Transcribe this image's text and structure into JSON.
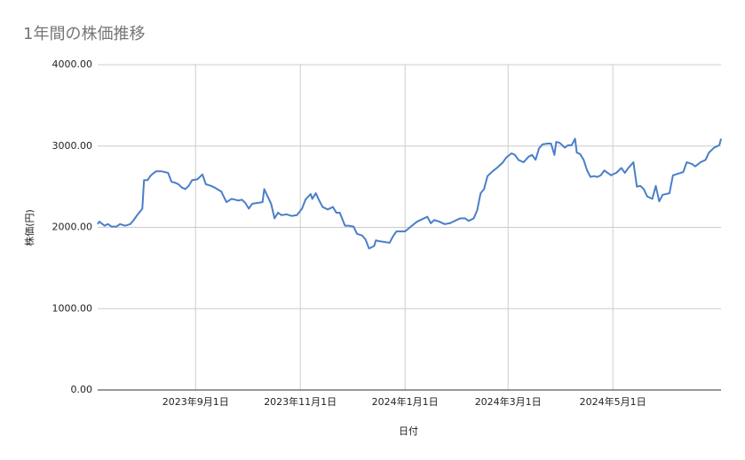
{
  "chart_data": {
    "type": "line",
    "title": "1年間の株価推移",
    "x_label": "日付",
    "y_label": "株価(円)",
    "x": [
      "2023-07-06",
      "2023-07-07",
      "2023-07-10",
      "2023-07-12",
      "2023-07-14",
      "2023-07-17",
      "2023-07-19",
      "2023-07-22",
      "2023-07-25",
      "2023-07-27",
      "2023-07-29",
      "2023-08-01",
      "2023-08-02",
      "2023-08-04",
      "2023-08-06",
      "2023-08-09",
      "2023-08-12",
      "2023-08-16",
      "2023-08-18",
      "2023-08-20",
      "2023-08-22",
      "2023-08-24",
      "2023-08-26",
      "2023-08-28",
      "2023-08-30",
      "2023-09-02",
      "2023-09-05",
      "2023-09-07",
      "2023-09-10",
      "2023-09-12",
      "2023-09-16",
      "2023-09-19",
      "2023-09-22",
      "2023-09-24",
      "2023-09-26",
      "2023-09-28",
      "2023-09-30",
      "2023-10-02",
      "2023-10-04",
      "2023-10-07",
      "2023-10-10",
      "2023-10-11",
      "2023-10-13",
      "2023-10-15",
      "2023-10-17",
      "2023-10-19",
      "2023-10-21",
      "2023-10-24",
      "2023-10-27",
      "2023-10-30",
      "2023-11-02",
      "2023-11-04",
      "2023-11-07",
      "2023-11-08",
      "2023-11-10",
      "2023-11-12",
      "2023-11-14",
      "2023-11-17",
      "2023-11-20",
      "2023-11-22",
      "2023-11-24",
      "2023-11-27",
      "2023-11-29",
      "2023-12-02",
      "2023-12-04",
      "2023-12-07",
      "2023-12-09",
      "2023-12-11",
      "2023-12-14",
      "2023-12-15",
      "2023-12-17",
      "2023-12-20",
      "2023-12-23",
      "2023-12-25",
      "2023-12-27",
      "2023-12-29",
      "2024-01-01",
      "2024-01-05",
      "2024-01-08",
      "2024-01-11",
      "2024-01-14",
      "2024-01-16",
      "2024-01-18",
      "2024-01-21",
      "2024-01-24",
      "2024-01-27",
      "2024-01-30",
      "2024-02-02",
      "2024-02-05",
      "2024-02-07",
      "2024-02-10",
      "2024-02-12",
      "2024-02-14",
      "2024-02-16",
      "2024-02-18",
      "2024-02-21",
      "2024-02-24",
      "2024-02-27",
      "2024-02-29",
      "2024-03-03",
      "2024-03-05",
      "2024-03-07",
      "2024-03-10",
      "2024-03-13",
      "2024-03-15",
      "2024-03-17",
      "2024-03-19",
      "2024-03-21",
      "2024-03-24",
      "2024-03-26",
      "2024-03-28",
      "2024-03-29",
      "2024-03-31",
      "2024-04-03",
      "2024-04-05",
      "2024-04-07",
      "2024-04-09",
      "2024-04-10",
      "2024-04-12",
      "2024-04-14",
      "2024-04-16",
      "2024-04-18",
      "2024-04-20",
      "2024-04-22",
      "2024-04-24",
      "2024-04-26",
      "2024-04-28",
      "2024-04-30",
      "2024-05-03",
      "2024-05-06",
      "2024-05-08",
      "2024-05-10",
      "2024-05-13",
      "2024-05-15",
      "2024-05-17",
      "2024-05-19",
      "2024-05-21",
      "2024-05-24",
      "2024-05-26",
      "2024-05-28",
      "2024-05-30",
      "2024-06-03",
      "2024-06-05",
      "2024-06-08",
      "2024-06-11",
      "2024-06-13",
      "2024-06-16",
      "2024-06-18",
      "2024-06-21",
      "2024-06-24",
      "2024-06-26",
      "2024-06-29",
      "2024-07-02",
      "2024-07-03"
    ],
    "values": [
      2040,
      2070,
      2020,
      2040,
      2010,
      2010,
      2040,
      2020,
      2040,
      2090,
      2150,
      2230,
      2580,
      2580,
      2640,
      2690,
      2690,
      2670,
      2560,
      2550,
      2530,
      2490,
      2470,
      2510,
      2580,
      2590,
      2650,
      2530,
      2510,
      2490,
      2440,
      2310,
      2350,
      2340,
      2330,
      2340,
      2300,
      2230,
      2290,
      2300,
      2310,
      2470,
      2380,
      2290,
      2110,
      2180,
      2150,
      2160,
      2140,
      2150,
      2230,
      2340,
      2410,
      2350,
      2420,
      2330,
      2250,
      2220,
      2250,
      2180,
      2180,
      2020,
      2020,
      2010,
      1920,
      1900,
      1850,
      1740,
      1770,
      1840,
      1830,
      1820,
      1810,
      1890,
      1950,
      1950,
      1950,
      2020,
      2070,
      2100,
      2130,
      2050,
      2090,
      2070,
      2040,
      2050,
      2080,
      2110,
      2110,
      2080,
      2110,
      2210,
      2420,
      2470,
      2630,
      2690,
      2740,
      2800,
      2860,
      2910,
      2890,
      2830,
      2800,
      2870,
      2890,
      2830,
      2970,
      3020,
      3030,
      3030,
      2890,
      3050,
      3040,
      2980,
      3010,
      3010,
      3090,
      2920,
      2900,
      2830,
      2700,
      2620,
      2630,
      2620,
      2640,
      2700,
      2670,
      2640,
      2670,
      2730,
      2670,
      2730,
      2800,
      2500,
      2510,
      2470,
      2380,
      2350,
      2510,
      2320,
      2400,
      2420,
      2640,
      2660,
      2680,
      2800,
      2780,
      2750,
      2800,
      2830,
      2920,
      2980,
      3010,
      3090
    ],
    "color": "#4a7fc9",
    "xlim": [
      "2023-07-06",
      "2024-07-03"
    ],
    "xticks": [
      {
        "value": "2023-09-01",
        "label": "2023年9月1日"
      },
      {
        "value": "2023-11-01",
        "label": "2023年11月1日"
      },
      {
        "value": "2024-01-01",
        "label": "2024年1月1日"
      },
      {
        "value": "2024-03-01",
        "label": "2024年3月1日"
      },
      {
        "value": "2024-05-01",
        "label": "2024年5月1日"
      }
    ],
    "ylim": [
      0,
      4000
    ],
    "yticks": [
      {
        "value": 0,
        "label": "0.00"
      },
      {
        "value": 1000,
        "label": "1000.00"
      },
      {
        "value": 2000,
        "label": "2000.00"
      },
      {
        "value": 3000,
        "label": "3000.00"
      },
      {
        "value": 4000,
        "label": "4000.00"
      }
    ],
    "grid": true
  }
}
